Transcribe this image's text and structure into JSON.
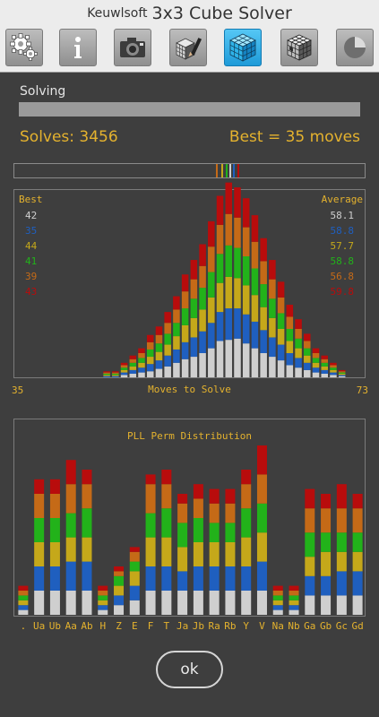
{
  "app": {
    "brand": "Keuwlsoft",
    "title": "3x3 Cube Solver",
    "toolbar": [
      {
        "name": "settings-button",
        "icon": "gears-icon",
        "active": false
      },
      {
        "name": "info-button",
        "icon": "info-icon",
        "active": false
      },
      {
        "name": "camera-button",
        "icon": "camera-icon",
        "active": false
      },
      {
        "name": "edit-cube-button",
        "icon": "pencil-cube-icon",
        "active": false
      },
      {
        "name": "solver-button",
        "icon": "cube-icon",
        "active": true
      },
      {
        "name": "scrambled-cube-button",
        "icon": "scrambled-cube-icon",
        "active": false
      },
      {
        "name": "stats-button",
        "icon": "pie-icon",
        "active": false
      }
    ]
  },
  "status": {
    "label": "Solving",
    "progress": 1.0,
    "solves_text": "Solves: 3456",
    "best_text": "Best =  35 moves"
  },
  "colors": {
    "white": "#cfcfcf",
    "blue": "#1f5fbf",
    "yellow": "#c5a81a",
    "green": "#22b21a",
    "orange": "#c56a17",
    "red": "#b80c0c",
    "accent": "#e4b22e"
  },
  "moves_chart": {
    "best_header": "Best",
    "average_header": "Average",
    "axis_min": "35",
    "axis_max": "73",
    "xlabel": "Moves to Solve",
    "legend": [
      {
        "best": "42",
        "average": "58.1",
        "color": "#cfcfcf"
      },
      {
        "best": "35",
        "average": "58.8",
        "color": "#1f5fbf"
      },
      {
        "best": "44",
        "average": "57.7",
        "color": "#c5a81a"
      },
      {
        "best": "41",
        "average": "58.8",
        "color": "#22b21a"
      },
      {
        "best": "39",
        "average": "56.8",
        "color": "#c56a17"
      },
      {
        "best": "43",
        "average": "59.8",
        "color": "#b80c0c"
      }
    ]
  },
  "pll_chart": {
    "title": "PLL Perm Distribution"
  },
  "ok_label": "ok",
  "chart_data": [
    {
      "type": "bar",
      "stacked": true,
      "xlabel": "Moves to Solve",
      "x": [
        35,
        36,
        37,
        38,
        39,
        40,
        41,
        42,
        43,
        44,
        45,
        46,
        47,
        48,
        49,
        50,
        51,
        52,
        53,
        54,
        55,
        56,
        57,
        58,
        59,
        60,
        61,
        62,
        62,
        63,
        64,
        65,
        66,
        67,
        68,
        69,
        70,
        71,
        72,
        73
      ],
      "series": [
        {
          "name": "42",
          "color": "#cfcfcf",
          "values": [
            0,
            0,
            0,
            0,
            0,
            0,
            0,
            0,
            0,
            0,
            0,
            0,
            2,
            3,
            4,
            5,
            7,
            9,
            12,
            15,
            17,
            20,
            24,
            30,
            31,
            32,
            28,
            24,
            20,
            17,
            14,
            10,
            8,
            6,
            4,
            3,
            2,
            1,
            0,
            0
          ]
        },
        {
          "name": "35",
          "color": "#1f5fbf",
          "values": [
            0,
            0,
            0,
            0,
            0,
            0,
            0,
            0,
            0,
            0,
            1,
            1,
            2,
            3,
            4,
            6,
            7,
            9,
            11,
            14,
            16,
            18,
            21,
            24,
            26,
            25,
            24,
            22,
            19,
            16,
            13,
            10,
            8,
            6,
            4,
            3,
            2,
            1,
            0,
            0
          ]
        },
        {
          "name": "44",
          "color": "#c5a81a",
          "values": [
            0,
            0,
            0,
            0,
            0,
            0,
            0,
            0,
            0,
            0,
            1,
            1,
            2,
            3,
            4,
            6,
            7,
            9,
            11,
            14,
            16,
            18,
            21,
            24,
            26,
            25,
            24,
            22,
            19,
            16,
            13,
            10,
            8,
            6,
            4,
            3,
            2,
            1,
            0,
            0
          ]
        },
        {
          "name": "41",
          "color": "#22b21a",
          "values": [
            0,
            0,
            0,
            0,
            0,
            0,
            0,
            0,
            0,
            0,
            1,
            1,
            2,
            3,
            4,
            6,
            7,
            9,
            11,
            14,
            16,
            18,
            21,
            24,
            26,
            25,
            24,
            22,
            19,
            16,
            13,
            10,
            8,
            6,
            4,
            3,
            2,
            1,
            0,
            0
          ]
        },
        {
          "name": "39",
          "color": "#c56a17",
          "values": [
            0,
            0,
            0,
            0,
            0,
            0,
            0,
            0,
            0,
            0,
            1,
            1,
            2,
            3,
            4,
            6,
            7,
            9,
            11,
            14,
            16,
            18,
            21,
            24,
            26,
            25,
            24,
            22,
            19,
            16,
            13,
            10,
            8,
            6,
            4,
            3,
            2,
            1,
            0,
            0
          ]
        },
        {
          "name": "43",
          "color": "#b80c0c",
          "values": [
            0,
            0,
            0,
            0,
            0,
            0,
            0,
            0,
            0,
            0,
            1,
            1,
            2,
            3,
            4,
            6,
            7,
            9,
            11,
            14,
            16,
            18,
            21,
            24,
            26,
            25,
            24,
            22,
            19,
            16,
            13,
            10,
            8,
            6,
            4,
            3,
            2,
            1,
            0,
            0
          ]
        }
      ]
    },
    {
      "type": "bar",
      "stacked": true,
      "title": "PLL Perm Distribution",
      "categories": [
        ".",
        "Ua",
        "Ub",
        "Aa",
        "Ab",
        "H",
        "Z",
        "E",
        "F",
        "T",
        "Ja",
        "Jb",
        "Ra",
        "Rb",
        "Y",
        "V",
        "Na",
        "Nb",
        "Ga",
        "Gb",
        "Gc",
        "Gd"
      ],
      "series": [
        {
          "name": "42",
          "color": "#cfcfcf",
          "values": [
            1,
            5,
            5,
            5,
            5,
            1,
            2,
            3,
            5,
            5,
            5,
            5,
            5,
            5,
            5,
            5,
            1,
            1,
            4,
            4,
            4,
            4
          ]
        },
        {
          "name": "35",
          "color": "#1f5fbf",
          "values": [
            1,
            5,
            5,
            6,
            6,
            1,
            2,
            3,
            5,
            5,
            4,
            5,
            5,
            5,
            5,
            6,
            1,
            1,
            4,
            4,
            5,
            5
          ]
        },
        {
          "name": "44",
          "color": "#c5a81a",
          "values": [
            1,
            5,
            5,
            5,
            5,
            1,
            2,
            3,
            6,
            6,
            5,
            5,
            5,
            5,
            6,
            6,
            1,
            1,
            4,
            5,
            4,
            4
          ]
        },
        {
          "name": "41",
          "color": "#22b21a",
          "values": [
            1,
            5,
            5,
            5,
            6,
            1,
            2,
            2,
            5,
            6,
            5,
            5,
            4,
            4,
            6,
            6,
            1,
            1,
            5,
            4,
            4,
            4
          ]
        },
        {
          "name": "39",
          "color": "#c56a17",
          "values": [
            1,
            5,
            5,
            6,
            5,
            1,
            1,
            2,
            6,
            5,
            4,
            4,
            4,
            4,
            5,
            6,
            1,
            1,
            5,
            5,
            5,
            5
          ]
        },
        {
          "name": "43",
          "color": "#b80c0c",
          "values": [
            1,
            3,
            3,
            5,
            3,
            1,
            1,
            1,
            2,
            3,
            2,
            3,
            3,
            3,
            3,
            6,
            1,
            1,
            4,
            3,
            5,
            3
          ]
        }
      ]
    }
  ]
}
